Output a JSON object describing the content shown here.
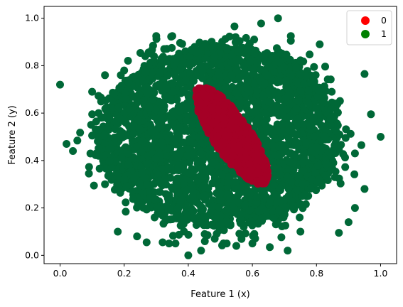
{
  "chart_data": {
    "type": "scatter",
    "xlabel": "Feature 1 (x)",
    "ylabel": "Feature 2 (y)",
    "xlim": [
      -0.05,
      1.05
    ],
    "ylim": [
      -0.035,
      1.05
    ],
    "xticks": [
      0.0,
      0.2,
      0.4,
      0.6,
      0.8,
      1.0
    ],
    "xtick_labels": [
      "0.0",
      "0.2",
      "0.4",
      "0.6",
      "0.8",
      "1.0"
    ],
    "yticks": [
      0.0,
      0.2,
      0.4,
      0.6,
      0.8,
      1.0
    ],
    "ytick_labels": [
      "0.0",
      "0.2",
      "0.4",
      "0.6",
      "0.8",
      "1.0"
    ],
    "grid": false,
    "legend_position": "top-right",
    "series": [
      {
        "name": "0",
        "color": "#a50026",
        "description_region": "ellipse centred near (0.53, 0.50), tilted along the line from (0.44, 0.71) to (0.64, 0.30)"
      },
      {
        "name": "1",
        "color": "#006837",
        "description_region": "dense disc centred near (0.50, 0.50) with radius about 0.36"
      }
    ],
    "outlier_points_class_1": [
      [
        0.0,
        0.72
      ],
      [
        0.02,
        0.47
      ],
      [
        0.04,
        0.44
      ],
      [
        0.09,
        0.345
      ],
      [
        0.1,
        0.505
      ],
      [
        0.1,
        0.69
      ],
      [
        0.12,
        0.53
      ],
      [
        0.14,
        0.76
      ],
      [
        0.14,
        0.3
      ],
      [
        0.12,
        0.6
      ],
      [
        0.3,
        0.925
      ],
      [
        0.35,
        0.925
      ],
      [
        0.32,
        0.055
      ],
      [
        0.34,
        0.05
      ],
      [
        0.36,
        0.05
      ],
      [
        0.24,
        0.08
      ],
      [
        0.27,
        0.055
      ],
      [
        0.4,
        0.0
      ],
      [
        0.44,
        0.02
      ],
      [
        0.52,
        0.05
      ],
      [
        0.55,
        0.04
      ],
      [
        0.6,
        0.05
      ],
      [
        0.68,
        1.0
      ],
      [
        0.72,
        0.925
      ],
      [
        0.72,
        0.905
      ],
      [
        0.71,
        0.02
      ],
      [
        0.75,
        0.1
      ],
      [
        0.87,
        0.095
      ],
      [
        0.9,
        0.14
      ],
      [
        0.95,
        0.28
      ],
      [
        0.97,
        0.595
      ],
      [
        0.95,
        0.765
      ],
      [
        1.0,
        0.5
      ],
      [
        0.92,
        0.43
      ],
      [
        0.94,
        0.465
      ],
      [
        0.81,
        0.89
      ],
      [
        0.2,
        0.78
      ],
      [
        0.18,
        0.1
      ],
      [
        0.12,
        0.42
      ],
      [
        0.92,
        0.2
      ]
    ]
  }
}
